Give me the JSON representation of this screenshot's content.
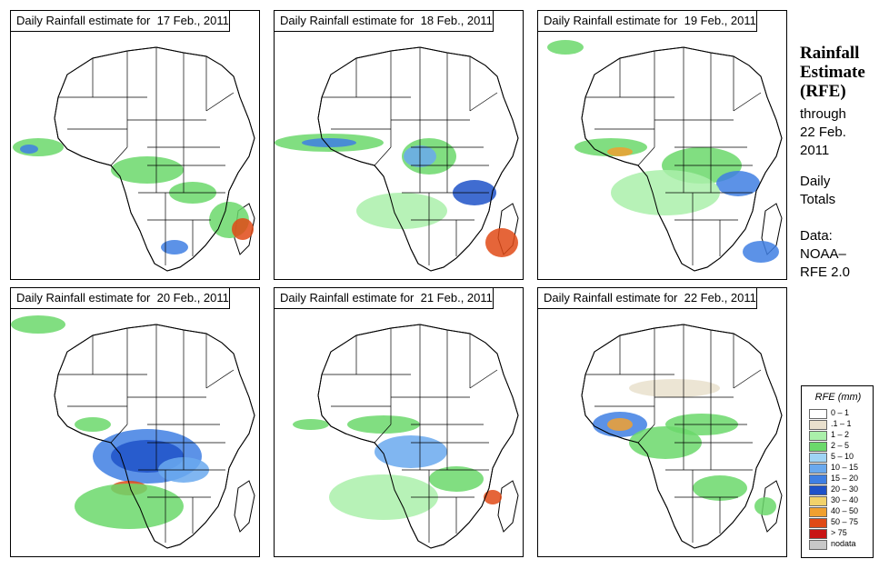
{
  "panels": [
    {
      "title": "Daily Rainfall estimate for  17 Feb., 2011"
    },
    {
      "title": "Daily Rainfall estimate for  18 Feb., 2011"
    },
    {
      "title": "Daily Rainfall estimate for  19 Feb., 2011"
    },
    {
      "title": "Daily Rainfall estimate for  20 Feb., 2011"
    },
    {
      "title": "Daily Rainfall estimate for  21 Feb., 2011"
    },
    {
      "title": "Daily Rainfall estimate for  22 Feb., 2011"
    }
  ],
  "side": {
    "title_line1": "Rainfall",
    "title_line2": "Estimate",
    "title_line3": "(RFE)",
    "through": "through",
    "date_line1": "22 Feb.",
    "date_line2": "2011",
    "daily": "Daily",
    "totals": "Totals",
    "data_label": "Data:",
    "source_line1": "NOAA–",
    "source_line2": "RFE 2.0"
  },
  "legend": {
    "title": "RFE (mm)",
    "items": [
      {
        "label": "0 – 1",
        "color": "#ffffff"
      },
      {
        "label": ".1 – 1",
        "color": "#e9e0cd"
      },
      {
        "label": "1 – 2",
        "color": "#aaf0aa"
      },
      {
        "label": "2 – 5",
        "color": "#6bd86b"
      },
      {
        "label": "5 – 10",
        "color": "#9fd4f5"
      },
      {
        "label": "10 – 15",
        "color": "#6aa9ee"
      },
      {
        "label": "15 – 20",
        "color": "#3f7fe3"
      },
      {
        "label": "20 – 30",
        "color": "#1f52c8"
      },
      {
        "label": "30 – 40",
        "color": "#f2d26a"
      },
      {
        "label": "40 – 50",
        "color": "#f0a030"
      },
      {
        "label": "50 – 75",
        "color": "#e04a16"
      },
      {
        "label": "> 75",
        "color": "#c81414"
      },
      {
        "label": "nodata",
        "color": "#c8c8c8"
      }
    ]
  }
}
